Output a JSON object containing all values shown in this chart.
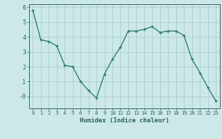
{
  "x": [
    0,
    1,
    2,
    3,
    4,
    5,
    6,
    7,
    8,
    9,
    10,
    11,
    12,
    13,
    14,
    15,
    16,
    17,
    18,
    19,
    20,
    21,
    22,
    23
  ],
  "y": [
    5.8,
    3.8,
    3.7,
    3.4,
    2.1,
    2.0,
    1.0,
    0.4,
    -0.1,
    1.5,
    2.5,
    3.3,
    4.4,
    4.4,
    4.5,
    4.7,
    4.3,
    4.4,
    4.4,
    4.1,
    2.5,
    1.6,
    0.6,
    -0.3
  ],
  "line_color": "#2d7d6e",
  "bg_color": "#cce8e8",
  "grid_color": "#aacccc",
  "axis_color": "#2d6060",
  "xlabel": "Humidex (Indice chaleur)",
  "ylim": [
    -0.8,
    6.2
  ],
  "xlim": [
    -0.5,
    23.5
  ],
  "yticks": [
    0,
    1,
    2,
    3,
    4,
    5,
    6
  ],
  "ytick_labels": [
    "-0",
    "1",
    "2",
    "3",
    "4",
    "5",
    "6"
  ],
  "xticks": [
    0,
    1,
    2,
    3,
    4,
    5,
    6,
    7,
    8,
    9,
    10,
    11,
    12,
    13,
    14,
    15,
    16,
    17,
    18,
    19,
    20,
    21,
    22,
    23
  ],
  "marker": "+",
  "marker_size": 3.5,
  "line_width": 1.0
}
